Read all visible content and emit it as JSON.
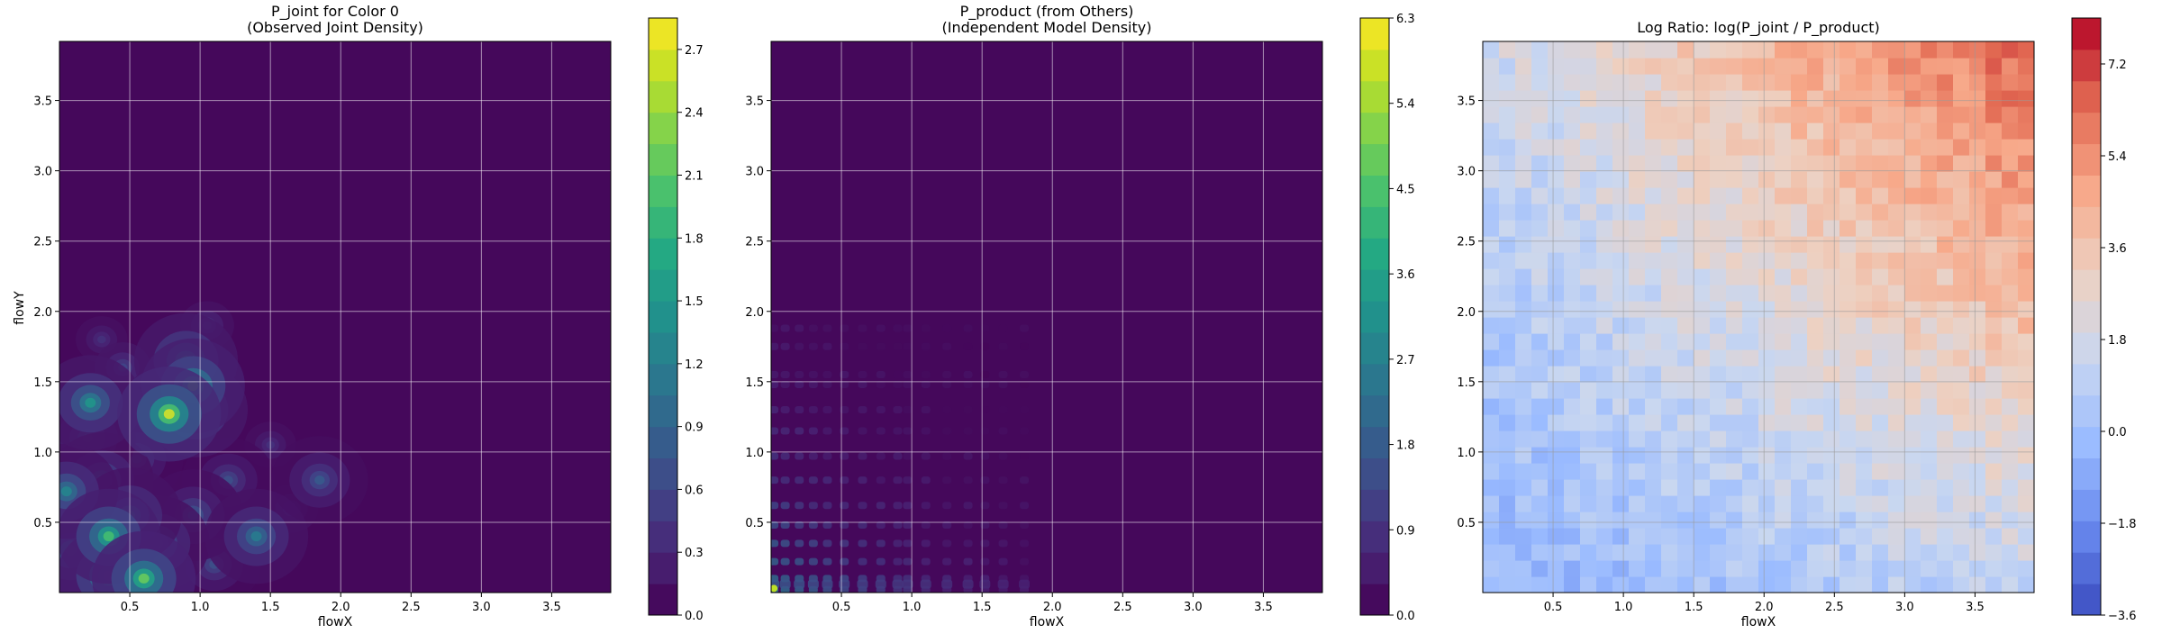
{
  "chart_data": [
    {
      "type": "heatmap",
      "title": "P_joint for Color 0",
      "subtitle": "(Observed Joint Density)",
      "xlabel": "flowX",
      "ylabel": "flowY",
      "xlim": [
        0.0,
        3.92
      ],
      "ylim": [
        0.0,
        3.92
      ],
      "xticks": [
        "0.5",
        "1.0",
        "1.5",
        "2.0",
        "2.5",
        "3.0",
        "3.5"
      ],
      "yticks": [
        "0.5",
        "1.0",
        "1.5",
        "2.0",
        "2.5",
        "3.0",
        "3.5"
      ],
      "grid": true,
      "colormap": "viridis",
      "colorbar": {
        "min": 0.0,
        "max": 2.85,
        "ticks": [
          "0.0",
          "0.3",
          "0.6",
          "0.9",
          "1.2",
          "1.5",
          "1.8",
          "2.1",
          "2.4",
          "2.7"
        ]
      },
      "hotspots": [
        {
          "x": 0.35,
          "y": 0.4,
          "value": 2.0
        },
        {
          "x": 0.6,
          "y": 0.1,
          "value": 2.2
        },
        {
          "x": 0.35,
          "y": 0.12,
          "value": 1.9
        },
        {
          "x": 0.78,
          "y": 1.27,
          "value": 2.7
        },
        {
          "x": 0.95,
          "y": 1.47,
          "value": 2.0
        },
        {
          "x": 0.9,
          "y": 1.65,
          "value": 1.6
        },
        {
          "x": 0.97,
          "y": 1.3,
          "value": 1.5
        },
        {
          "x": 0.22,
          "y": 1.35,
          "value": 1.5
        },
        {
          "x": 0.05,
          "y": 0.72,
          "value": 1.3
        },
        {
          "x": 0.08,
          "y": 0.3,
          "value": 1.2
        },
        {
          "x": 0.5,
          "y": 0.55,
          "value": 1.2
        },
        {
          "x": 0.7,
          "y": 0.35,
          "value": 1.1
        },
        {
          "x": 1.4,
          "y": 0.4,
          "value": 1.2
        },
        {
          "x": 0.95,
          "y": 0.55,
          "value": 0.9
        },
        {
          "x": 0.3,
          "y": 0.8,
          "value": 1.0
        },
        {
          "x": 0.55,
          "y": 0.95,
          "value": 0.7
        },
        {
          "x": 1.2,
          "y": 0.8,
          "value": 0.7
        },
        {
          "x": 1.85,
          "y": 0.8,
          "value": 0.8
        },
        {
          "x": 0.2,
          "y": 1.1,
          "value": 0.8
        },
        {
          "x": 0.45,
          "y": 1.6,
          "value": 0.6
        },
        {
          "x": 1.05,
          "y": 1.9,
          "value": 0.5
        },
        {
          "x": 1.65,
          "y": 0.6,
          "value": 0.5
        },
        {
          "x": 1.1,
          "y": 0.2,
          "value": 0.7
        },
        {
          "x": 0.3,
          "y": 1.8,
          "value": 0.4
        },
        {
          "x": 1.5,
          "y": 1.05,
          "value": 0.4
        }
      ]
    },
    {
      "type": "heatmap",
      "title": "P_product (from Others)",
      "subtitle": "(Independent Model Density)",
      "xlabel": "flowX",
      "ylabel": "",
      "xlim": [
        0.0,
        3.92
      ],
      "ylim": [
        0.0,
        3.92
      ],
      "xticks": [
        "0.5",
        "1.0",
        "1.5",
        "2.0",
        "2.5",
        "3.0",
        "3.5"
      ],
      "yticks": [
        "0.5",
        "1.0",
        "1.5",
        "2.0",
        "2.5",
        "3.0",
        "3.5"
      ],
      "grid": true,
      "colormap": "viridis",
      "colorbar": {
        "min": 0.0,
        "max": 6.3,
        "ticks": [
          "0.0",
          "0.9",
          "1.8",
          "2.7",
          "3.6",
          "4.5",
          "5.4",
          "6.3"
        ]
      },
      "marginal_peaks_x": [
        0.02,
        0.1,
        0.2,
        0.3,
        0.4,
        0.52,
        0.65,
        0.78,
        0.9,
        0.97,
        1.1,
        1.25,
        1.4,
        1.52,
        1.65,
        1.8
      ],
      "marginal_peaks_y": [
        0.02,
        0.1,
        0.22,
        0.35,
        0.48,
        0.62,
        0.8,
        0.97,
        1.15,
        1.3,
        1.48,
        1.55,
        1.75,
        1.88
      ],
      "max_point": {
        "x": 0.02,
        "y": 0.03,
        "value": 6.3
      }
    },
    {
      "type": "heatmap",
      "title": "Log Ratio: log(P_joint / P_product)",
      "xlabel": "flowX",
      "ylabel": "",
      "xlim": [
        0.0,
        3.92
      ],
      "ylim": [
        0.0,
        3.92
      ],
      "xticks": [
        "0.5",
        "1.0",
        "1.5",
        "2.0",
        "2.5",
        "3.0",
        "3.5"
      ],
      "yticks": [
        "0.5",
        "1.0",
        "1.5",
        "2.0",
        "2.5",
        "3.0",
        "3.5"
      ],
      "grid": true,
      "colormap": "coolwarm",
      "colorbar": {
        "min": -3.6,
        "max": 8.1,
        "ticks": [
          "−3.6",
          "−1.8",
          "0.0",
          "1.8",
          "3.6",
          "5.4",
          "7.2"
        ]
      },
      "trend": "ratio increases toward high flowX and high flowY; near zero along the low-value corner",
      "corner_values": {
        "low_low": -0.5,
        "high_x_low_y": 1.2,
        "low_x_high_y": 1.5,
        "high_high": 6.5
      }
    }
  ]
}
